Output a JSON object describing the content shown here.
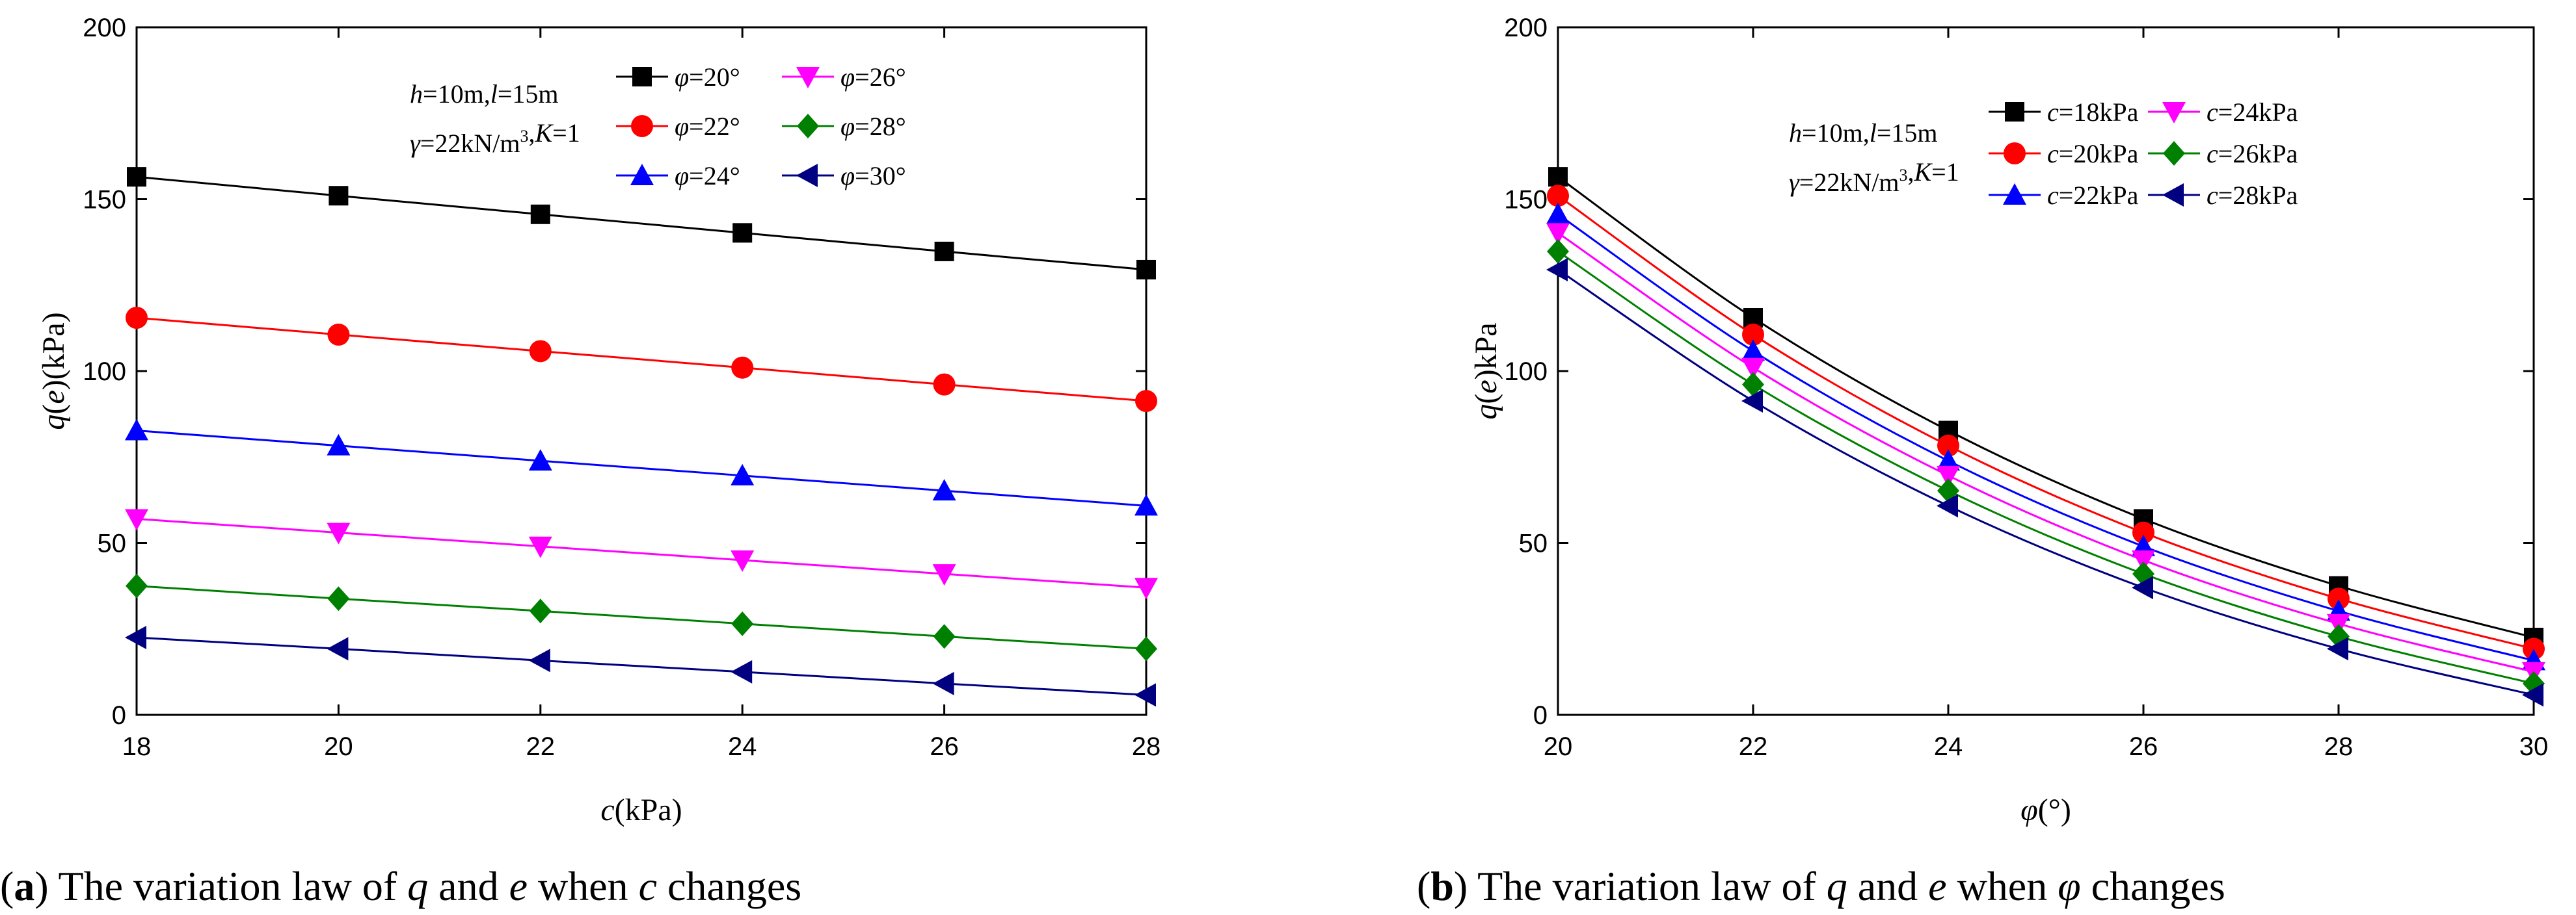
{
  "chart_data": [
    {
      "type": "line",
      "panel": "a",
      "caption": {
        "label": "a",
        "text": ") The variation law of q and e when c changes"
      },
      "xlabel": "c(kPa)",
      "ylabel": "q(e)(kPa)",
      "xlim": [
        18,
        28
      ],
      "ylim": [
        0,
        200
      ],
      "xticks": [
        18,
        20,
        22,
        24,
        26,
        28
      ],
      "yticks": [
        0,
        50,
        100,
        150,
        200
      ],
      "grid": false,
      "legend_position": "top-right",
      "annotation": [
        "h=10m,l=15m",
        "γ=22kN/m3,K=1"
      ],
      "x": [
        18,
        20,
        22,
        24,
        26,
        28
      ],
      "series": [
        {
          "name": "φ=20°",
          "color": "#000000",
          "marker": "square",
          "values": [
            156.5,
            151,
            145.6,
            140.2,
            134.8,
            129.5
          ]
        },
        {
          "name": "φ=22°",
          "color": "#ff0000",
          "marker": "circle",
          "values": [
            115.5,
            110.6,
            105.8,
            101,
            96.1,
            91.3
          ]
        },
        {
          "name": "φ=24°",
          "color": "#0000ff",
          "marker": "triangle-up",
          "values": [
            82.7,
            78.3,
            73.9,
            69.6,
            65.2,
            60.8
          ]
        },
        {
          "name": "φ=26°",
          "color": "#ff00ff",
          "marker": "triangle-down",
          "values": [
            57,
            53,
            49,
            45,
            41,
            37
          ]
        },
        {
          "name": "φ=28°",
          "color": "#008000",
          "marker": "diamond",
          "values": [
            37.5,
            33.8,
            30.2,
            26.5,
            22.8,
            19.2
          ]
        },
        {
          "name": "φ=30°",
          "color": "#000080",
          "marker": "triangle-left",
          "values": [
            22.5,
            19.2,
            15.8,
            12.5,
            9.1,
            5.8
          ]
        }
      ]
    },
    {
      "type": "line",
      "panel": "b",
      "caption": {
        "label": "b",
        "text": ") The variation law of q and e when φ changes"
      },
      "xlabel": "φ(°)",
      "ylabel": "q(e)kPa",
      "xlim": [
        20,
        30
      ],
      "ylim": [
        0,
        200
      ],
      "xticks": [
        20,
        22,
        24,
        26,
        28,
        30
      ],
      "yticks": [
        0,
        50,
        100,
        150,
        200
      ],
      "grid": false,
      "legend_position": "top-right",
      "annotation": [
        "h=10m,l=15m",
        "γ=22kN/m3,K=1"
      ],
      "x": [
        20,
        22,
        24,
        26,
        28,
        30
      ],
      "series": [
        {
          "name": "c=18kPa",
          "color": "#000000",
          "marker": "square",
          "values": [
            156.5,
            115.5,
            82.7,
            57,
            37.5,
            22.5
          ]
        },
        {
          "name": "c=20kPa",
          "color": "#ff0000",
          "marker": "circle",
          "values": [
            151,
            110.6,
            78.3,
            53,
            33.8,
            19.2
          ]
        },
        {
          "name": "c=22kPa",
          "color": "#0000ff",
          "marker": "triangle-up",
          "values": [
            145.6,
            105.8,
            73.9,
            49,
            30.2,
            15.8
          ]
        },
        {
          "name": "c=24kPa",
          "color": "#ff00ff",
          "marker": "triangle-down",
          "values": [
            140.2,
            101,
            69.6,
            45,
            26.5,
            12.5
          ]
        },
        {
          "name": "c=26kPa",
          "color": "#008000",
          "marker": "diamond",
          "values": [
            134.8,
            96.1,
            65.2,
            41,
            22.8,
            9.1
          ]
        },
        {
          "name": "c=28kPa",
          "color": "#000080",
          "marker": "triangle-left",
          "values": [
            129.5,
            91.3,
            60.8,
            37,
            19.2,
            5.8
          ]
        }
      ]
    }
  ]
}
